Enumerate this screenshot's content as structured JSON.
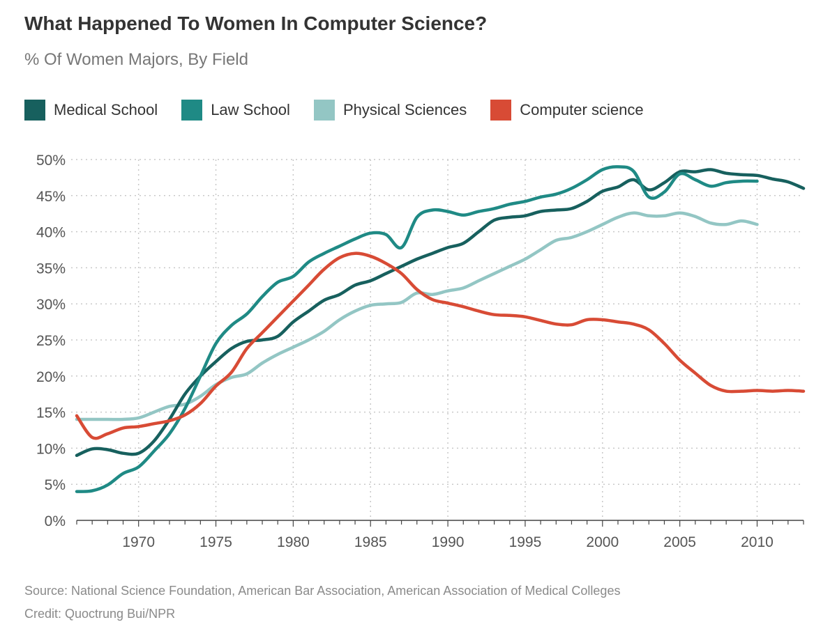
{
  "header": {
    "title": "What Happened To Women In Computer Science?",
    "subtitle": "% Of Women Majors, By Field"
  },
  "footer": {
    "source": "Source: National Science Foundation, American Bar Association, American Association of Medical Colleges",
    "credit": "Credit: Quoctrung Bui/NPR"
  },
  "chart_data": {
    "type": "line",
    "title": "What Happened To Women In Computer Science?",
    "subtitle": "% Of Women Majors, By Field",
    "xlabel": "",
    "ylabel": "",
    "xlim": [
      1966,
      2013
    ],
    "ylim": [
      0,
      50
    ],
    "x_ticks": [
      1970,
      1975,
      1980,
      1985,
      1990,
      1995,
      2000,
      2005,
      2010
    ],
    "x_tick_labels": [
      "1970",
      "1975",
      "1980",
      "1985",
      "1990",
      "1995",
      "2000",
      "2005",
      "2010"
    ],
    "y_ticks": [
      0,
      5,
      10,
      15,
      20,
      25,
      30,
      35,
      40,
      45,
      50
    ],
    "y_tick_labels": [
      "0%",
      "5%",
      "10%",
      "15%",
      "20%",
      "25%",
      "30%",
      "35%",
      "40%",
      "45%",
      "50%"
    ],
    "grid": "dotted",
    "legend_position": "top",
    "series": [
      {
        "name": "Medical School",
        "color": "#17605e",
        "points": [
          [
            1966,
            9
          ],
          [
            1967,
            9.9
          ],
          [
            1968,
            9.8
          ],
          [
            1969,
            9.3
          ],
          [
            1970,
            9.3
          ],
          [
            1971,
            11
          ],
          [
            1972,
            14
          ],
          [
            1973,
            17.5
          ],
          [
            1974,
            20
          ],
          [
            1975,
            22
          ],
          [
            1976,
            23.8
          ],
          [
            1977,
            24.8
          ],
          [
            1978,
            25
          ],
          [
            1979,
            25.5
          ],
          [
            1980,
            27.5
          ],
          [
            1981,
            29
          ],
          [
            1982,
            30.5
          ],
          [
            1983,
            31.3
          ],
          [
            1984,
            32.6
          ],
          [
            1985,
            33.2
          ],
          [
            1986,
            34.2
          ],
          [
            1987,
            35.2
          ],
          [
            1988,
            36.2
          ],
          [
            1989,
            37
          ],
          [
            1990,
            37.8
          ],
          [
            1991,
            38.4
          ],
          [
            1992,
            40
          ],
          [
            1993,
            41.6
          ],
          [
            1994,
            42
          ],
          [
            1995,
            42.2
          ],
          [
            1996,
            42.8
          ],
          [
            1997,
            43
          ],
          [
            1998,
            43.2
          ],
          [
            1999,
            44.2
          ],
          [
            2000,
            45.6
          ],
          [
            2001,
            46.2
          ],
          [
            2002,
            47.2
          ],
          [
            2003,
            45.8
          ],
          [
            2004,
            46.8
          ],
          [
            2005,
            48.3
          ],
          [
            2006,
            48.3
          ],
          [
            2007,
            48.6
          ],
          [
            2008,
            48.1
          ],
          [
            2009,
            47.9
          ],
          [
            2010,
            47.8
          ],
          [
            2011,
            47.3
          ],
          [
            2012,
            46.9
          ],
          [
            2013,
            46
          ]
        ]
      },
      {
        "name": "Law School",
        "color": "#1f8a85",
        "points": [
          [
            1966,
            4
          ],
          [
            1967,
            4.1
          ],
          [
            1968,
            4.9
          ],
          [
            1969,
            6.5
          ],
          [
            1970,
            7.4
          ],
          [
            1971,
            9.6
          ],
          [
            1972,
            12
          ],
          [
            1973,
            15.5
          ],
          [
            1974,
            20
          ],
          [
            1975,
            24.5
          ],
          [
            1976,
            27
          ],
          [
            1977,
            28.6
          ],
          [
            1978,
            31
          ],
          [
            1979,
            33
          ],
          [
            1980,
            33.8
          ],
          [
            1981,
            35.8
          ],
          [
            1982,
            37
          ],
          [
            1983,
            38
          ],
          [
            1984,
            39
          ],
          [
            1985,
            39.8
          ],
          [
            1986,
            39.6
          ],
          [
            1987,
            37.8
          ],
          [
            1988,
            42
          ],
          [
            1989,
            43
          ],
          [
            1990,
            42.8
          ],
          [
            1991,
            42.3
          ],
          [
            1992,
            42.8
          ],
          [
            1993,
            43.2
          ],
          [
            1994,
            43.8
          ],
          [
            1995,
            44.2
          ],
          [
            1996,
            44.8
          ],
          [
            1997,
            45.2
          ],
          [
            1998,
            46
          ],
          [
            1999,
            47.2
          ],
          [
            2000,
            48.6
          ],
          [
            2001,
            49
          ],
          [
            2002,
            48.4
          ],
          [
            2003,
            44.8
          ],
          [
            2004,
            45.5
          ],
          [
            2005,
            48
          ],
          [
            2006,
            47.2
          ],
          [
            2007,
            46.3
          ],
          [
            2008,
            46.8
          ],
          [
            2009,
            47
          ],
          [
            2010,
            47
          ]
        ]
      },
      {
        "name": "Physical Sciences",
        "color": "#93c6c4",
        "points": [
          [
            1966,
            14
          ],
          [
            1967,
            14
          ],
          [
            1968,
            14
          ],
          [
            1969,
            14
          ],
          [
            1970,
            14.2
          ],
          [
            1971,
            15
          ],
          [
            1972,
            15.8
          ],
          [
            1973,
            16.1
          ],
          [
            1974,
            17.2
          ],
          [
            1975,
            18.8
          ],
          [
            1976,
            19.8
          ],
          [
            1977,
            20.3
          ],
          [
            1978,
            21.8
          ],
          [
            1979,
            23
          ],
          [
            1980,
            24
          ],
          [
            1981,
            25
          ],
          [
            1982,
            26.2
          ],
          [
            1983,
            27.8
          ],
          [
            1984,
            29
          ],
          [
            1985,
            29.8
          ],
          [
            1986,
            30
          ],
          [
            1987,
            30.2
          ],
          [
            1988,
            31.5
          ],
          [
            1989,
            31.3
          ],
          [
            1990,
            31.8
          ],
          [
            1991,
            32.2
          ],
          [
            1992,
            33.2
          ],
          [
            1993,
            34.2
          ],
          [
            1994,
            35.2
          ],
          [
            1995,
            36.2
          ],
          [
            1996,
            37.5
          ],
          [
            1997,
            38.8
          ],
          [
            1998,
            39.2
          ],
          [
            1999,
            40
          ],
          [
            2000,
            41
          ],
          [
            2001,
            42
          ],
          [
            2002,
            42.6
          ],
          [
            2003,
            42.2
          ],
          [
            2004,
            42.2
          ],
          [
            2005,
            42.6
          ],
          [
            2006,
            42.1
          ],
          [
            2007,
            41.2
          ],
          [
            2008,
            41
          ],
          [
            2009,
            41.5
          ],
          [
            2010,
            41
          ]
        ]
      },
      {
        "name": "Computer science",
        "color": "#d84b35",
        "points": [
          [
            1966,
            14.5
          ],
          [
            1967,
            11.5
          ],
          [
            1968,
            12
          ],
          [
            1969,
            12.8
          ],
          [
            1970,
            13
          ],
          [
            1971,
            13.4
          ],
          [
            1972,
            13.8
          ],
          [
            1973,
            14.6
          ],
          [
            1974,
            16.2
          ],
          [
            1975,
            18.6
          ],
          [
            1976,
            20.5
          ],
          [
            1977,
            23.8
          ],
          [
            1978,
            26
          ],
          [
            1979,
            28.2
          ],
          [
            1980,
            30.4
          ],
          [
            1981,
            32.6
          ],
          [
            1982,
            34.8
          ],
          [
            1983,
            36.4
          ],
          [
            1984,
            37
          ],
          [
            1985,
            36.6
          ],
          [
            1986,
            35.6
          ],
          [
            1987,
            34.2
          ],
          [
            1988,
            32
          ],
          [
            1989,
            30.6
          ],
          [
            1990,
            30.1
          ],
          [
            1991,
            29.6
          ],
          [
            1992,
            29
          ],
          [
            1993,
            28.5
          ],
          [
            1994,
            28.4
          ],
          [
            1995,
            28.2
          ],
          [
            1996,
            27.7
          ],
          [
            1997,
            27.2
          ],
          [
            1998,
            27.1
          ],
          [
            1999,
            27.8
          ],
          [
            2000,
            27.8
          ],
          [
            2001,
            27.5
          ],
          [
            2002,
            27.2
          ],
          [
            2003,
            26.4
          ],
          [
            2004,
            24.5
          ],
          [
            2005,
            22.2
          ],
          [
            2006,
            20.4
          ],
          [
            2007,
            18.7
          ],
          [
            2008,
            17.9
          ],
          [
            2009,
            17.9
          ],
          [
            2010,
            18
          ],
          [
            2011,
            17.9
          ],
          [
            2012,
            18
          ],
          [
            2013,
            17.9
          ]
        ]
      }
    ]
  }
}
